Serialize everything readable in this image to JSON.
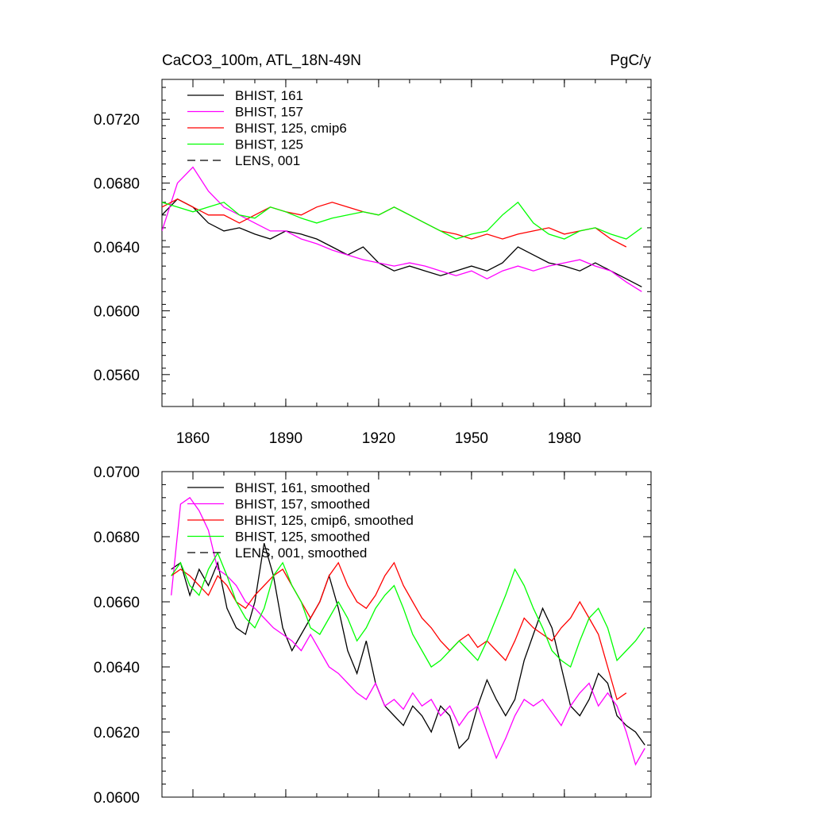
{
  "panels": [
    {
      "id": "raw",
      "title_left": "CaCO3_100m, ATL_18N-49N",
      "title_right": "PgC/y",
      "xlim": [
        1850,
        2008
      ],
      "ylim": [
        0.054,
        0.0745
      ],
      "yticks": [
        "0.0560",
        "0.0600",
        "0.0640",
        "0.0680",
        "0.0720"
      ],
      "ytick_values": [
        0.056,
        0.06,
        0.064,
        0.068,
        0.072
      ],
      "xticks": [
        "1860",
        "1890",
        "1920",
        "1950",
        "1980"
      ],
      "xtick_values": [
        1860,
        1890,
        1920,
        1950,
        1980
      ],
      "show_xtick_labels": true,
      "legend": [
        {
          "label": "BHIST, 161",
          "color": "#000000",
          "dash": false
        },
        {
          "label": "BHIST, 157",
          "color": "#ff00ff",
          "dash": false
        },
        {
          "label": "BHIST, 125, cmip6",
          "color": "#ff0000",
          "dash": false
        },
        {
          "label": "BHIST, 125",
          "color": "#00ff00",
          "dash": false
        },
        {
          "label": "LENS, 001",
          "color": "#000000",
          "dash": true
        }
      ]
    },
    {
      "id": "smoothed",
      "title_left": "",
      "title_right": "",
      "xlim": [
        1850,
        2008
      ],
      "ylim": [
        0.06,
        0.07
      ],
      "yticks": [
        "0.0600",
        "0.0620",
        "0.0640",
        "0.0660",
        "0.0680",
        "0.0700"
      ],
      "ytick_values": [
        0.06,
        0.062,
        0.064,
        0.066,
        0.068,
        0.07
      ],
      "xticks": [
        "1860",
        "1890",
        "1920",
        "1950",
        "1980"
      ],
      "xtick_values": [
        1860,
        1890,
        1920,
        1950,
        1980
      ],
      "show_xtick_labels": false,
      "legend": [
        {
          "label": "BHIST, 161, smoothed",
          "color": "#000000",
          "dash": false
        },
        {
          "label": "BHIST, 157, smoothed",
          "color": "#ff00ff",
          "dash": false
        },
        {
          "label": "BHIST, 125, cmip6, smoothed",
          "color": "#ff0000",
          "dash": false
        },
        {
          "label": "BHIST, 125, smoothed",
          "color": "#00ff00",
          "dash": false
        },
        {
          "label": "LENS, 001, smoothed",
          "color": "#000000",
          "dash": true
        }
      ]
    }
  ],
  "chart_data": [
    {
      "type": "line",
      "title": "CaCO3_100m, ATL_18N-49N",
      "units": "PgC/y",
      "xlabel": "",
      "ylabel": "",
      "xlim": [
        1850,
        2008
      ],
      "ylim": [
        0.054,
        0.0745
      ],
      "grid": false,
      "legend_position": "top-left",
      "series": [
        {
          "name": "BHIST, 161",
          "color": "#000000",
          "x": [
            1850,
            1855,
            1860,
            1865,
            1870,
            1875,
            1880,
            1885,
            1890,
            1895,
            1900,
            1905,
            1910,
            1915,
            1920,
            1925,
            1930,
            1935,
            1940,
            1945,
            1950,
            1955,
            1960,
            1965,
            1970,
            1975,
            1980,
            1985,
            1990,
            1995,
            2000,
            2005
          ],
          "y": [
            0.066,
            0.067,
            0.0665,
            0.0655,
            0.065,
            0.0652,
            0.0648,
            0.0645,
            0.065,
            0.0648,
            0.0645,
            0.064,
            0.0635,
            0.064,
            0.063,
            0.0625,
            0.0628,
            0.0625,
            0.0622,
            0.0625,
            0.0628,
            0.0625,
            0.063,
            0.064,
            0.0635,
            0.063,
            0.0628,
            0.0625,
            0.063,
            0.0625,
            0.062,
            0.0615
          ]
        },
        {
          "name": "BHIST, 157",
          "color": "#ff00ff",
          "x": [
            1850,
            1855,
            1860,
            1865,
            1870,
            1875,
            1880,
            1885,
            1890,
            1895,
            1900,
            1905,
            1910,
            1915,
            1920,
            1925,
            1930,
            1935,
            1940,
            1945,
            1950,
            1955,
            1960,
            1965,
            1970,
            1975,
            1980,
            1985,
            1990,
            1995,
            2000,
            2005
          ],
          "y": [
            0.065,
            0.068,
            0.069,
            0.0675,
            0.0665,
            0.066,
            0.0655,
            0.065,
            0.065,
            0.0645,
            0.0642,
            0.0638,
            0.0635,
            0.0632,
            0.063,
            0.0628,
            0.063,
            0.0628,
            0.0625,
            0.0622,
            0.0625,
            0.062,
            0.0625,
            0.0628,
            0.0625,
            0.0628,
            0.063,
            0.0632,
            0.0628,
            0.0625,
            0.0618,
            0.0612
          ]
        },
        {
          "name": "BHIST, 125, cmip6",
          "color": "#ff0000",
          "x": [
            1850,
            1855,
            1860,
            1865,
            1870,
            1875,
            1880,
            1885,
            1890,
            1895,
            1900,
            1905,
            1910,
            1915,
            1920,
            1925,
            1930,
            1935,
            1940,
            1945,
            1950,
            1955,
            1960,
            1965,
            1970,
            1975,
            1980,
            1985,
            1990,
            1995,
            2000
          ],
          "y": [
            0.0665,
            0.067,
            0.0665,
            0.066,
            0.066,
            0.0655,
            0.066,
            0.0665,
            0.0662,
            0.066,
            0.0665,
            0.0668,
            0.0665,
            0.0662,
            0.066,
            0.0665,
            0.066,
            0.0655,
            0.065,
            0.0648,
            0.0645,
            0.0648,
            0.0645,
            0.0648,
            0.065,
            0.0652,
            0.0648,
            0.065,
            0.0652,
            0.0645,
            0.064
          ]
        },
        {
          "name": "BHIST, 125",
          "color": "#00ff00",
          "x": [
            1850,
            1855,
            1860,
            1865,
            1870,
            1875,
            1880,
            1885,
            1890,
            1895,
            1900,
            1905,
            1910,
            1915,
            1920,
            1925,
            1930,
            1935,
            1940,
            1945,
            1950,
            1955,
            1960,
            1965,
            1970,
            1975,
            1980,
            1985,
            1990,
            1995,
            2000,
            2005
          ],
          "y": [
            0.0668,
            0.0665,
            0.0662,
            0.0665,
            0.0668,
            0.066,
            0.0658,
            0.0665,
            0.0662,
            0.0658,
            0.0655,
            0.0658,
            0.066,
            0.0662,
            0.066,
            0.0665,
            0.066,
            0.0655,
            0.065,
            0.0645,
            0.0648,
            0.065,
            0.066,
            0.0668,
            0.0655,
            0.0648,
            0.0645,
            0.065,
            0.0652,
            0.0648,
            0.0645,
            0.0652
          ]
        }
      ]
    },
    {
      "type": "line",
      "title": "",
      "xlabel": "",
      "ylabel": "",
      "xlim": [
        1850,
        2008
      ],
      "ylim": [
        0.06,
        0.07
      ],
      "grid": false,
      "legend_position": "top-left",
      "series": [
        {
          "name": "BHIST, 161, smoothed",
          "color": "#000000",
          "x": [
            1853,
            1856,
            1859,
            1862,
            1865,
            1868,
            1871,
            1874,
            1877,
            1880,
            1883,
            1886,
            1889,
            1892,
            1895,
            1898,
            1901,
            1904,
            1907,
            1910,
            1913,
            1916,
            1919,
            1922,
            1925,
            1928,
            1931,
            1934,
            1937,
            1940,
            1943,
            1946,
            1949,
            1952,
            1955,
            1958,
            1961,
            1964,
            1967,
            1970,
            1973,
            1976,
            1979,
            1982,
            1985,
            1988,
            1991,
            1994,
            1997,
            2000,
            2003,
            2006
          ],
          "y": [
            0.067,
            0.0672,
            0.0662,
            0.067,
            0.0665,
            0.0672,
            0.0658,
            0.0652,
            0.065,
            0.066,
            0.0678,
            0.0668,
            0.0652,
            0.0645,
            0.065,
            0.0655,
            0.066,
            0.0668,
            0.0658,
            0.0645,
            0.0638,
            0.0648,
            0.0635,
            0.0628,
            0.0625,
            0.0622,
            0.0628,
            0.0625,
            0.062,
            0.0628,
            0.0625,
            0.0615,
            0.0618,
            0.0628,
            0.0636,
            0.063,
            0.0625,
            0.063,
            0.0642,
            0.065,
            0.0658,
            0.0652,
            0.064,
            0.0628,
            0.0625,
            0.063,
            0.0638,
            0.0635,
            0.0625,
            0.0622,
            0.062,
            0.0616
          ]
        },
        {
          "name": "BHIST, 157, smoothed",
          "color": "#ff00ff",
          "x": [
            1853,
            1856,
            1859,
            1862,
            1865,
            1868,
            1871,
            1874,
            1877,
            1880,
            1883,
            1886,
            1889,
            1892,
            1895,
            1898,
            1901,
            1904,
            1907,
            1910,
            1913,
            1916,
            1919,
            1922,
            1925,
            1928,
            1931,
            1934,
            1937,
            1940,
            1943,
            1946,
            1949,
            1952,
            1955,
            1958,
            1961,
            1964,
            1967,
            1970,
            1973,
            1976,
            1979,
            1982,
            1985,
            1988,
            1991,
            1994,
            1997,
            2000,
            2003,
            2006
          ],
          "y": [
            0.0662,
            0.069,
            0.0692,
            0.0688,
            0.0682,
            0.067,
            0.0668,
            0.0665,
            0.066,
            0.0658,
            0.0655,
            0.0652,
            0.065,
            0.0648,
            0.0645,
            0.065,
            0.0645,
            0.064,
            0.0638,
            0.0635,
            0.0632,
            0.063,
            0.0635,
            0.0628,
            0.063,
            0.0627,
            0.0632,
            0.0628,
            0.063,
            0.0625,
            0.0628,
            0.0622,
            0.0626,
            0.0628,
            0.062,
            0.0612,
            0.0618,
            0.0625,
            0.063,
            0.0628,
            0.063,
            0.0626,
            0.0622,
            0.0628,
            0.0632,
            0.0635,
            0.0628,
            0.0632,
            0.0628,
            0.062,
            0.061,
            0.0615
          ]
        },
        {
          "name": "BHIST, 125, cmip6, smoothed",
          "color": "#ff0000",
          "x": [
            1853,
            1856,
            1859,
            1862,
            1865,
            1868,
            1871,
            1874,
            1877,
            1880,
            1883,
            1886,
            1889,
            1892,
            1895,
            1898,
            1901,
            1904,
            1907,
            1910,
            1913,
            1916,
            1919,
            1922,
            1925,
            1928,
            1931,
            1934,
            1937,
            1940,
            1943,
            1946,
            1949,
            1952,
            1955,
            1958,
            1961,
            1964,
            1967,
            1970,
            1973,
            1976,
            1979,
            1982,
            1985,
            1988,
            1991,
            1994,
            1997,
            2000
          ],
          "y": [
            0.0668,
            0.067,
            0.0668,
            0.0665,
            0.0662,
            0.0668,
            0.0665,
            0.066,
            0.0658,
            0.0662,
            0.0665,
            0.0668,
            0.067,
            0.0665,
            0.066,
            0.0655,
            0.066,
            0.0668,
            0.0672,
            0.0665,
            0.066,
            0.0658,
            0.0662,
            0.0668,
            0.0672,
            0.0665,
            0.066,
            0.0655,
            0.0652,
            0.0648,
            0.0645,
            0.0648,
            0.065,
            0.0646,
            0.0648,
            0.0645,
            0.0642,
            0.0648,
            0.0655,
            0.0652,
            0.065,
            0.0648,
            0.0652,
            0.0655,
            0.066,
            0.0655,
            0.065,
            0.064,
            0.063,
            0.0632
          ]
        },
        {
          "name": "BHIST, 125, smoothed",
          "color": "#00ff00",
          "x": [
            1853,
            1856,
            1859,
            1862,
            1865,
            1868,
            1871,
            1874,
            1877,
            1880,
            1883,
            1886,
            1889,
            1892,
            1895,
            1898,
            1901,
            1904,
            1907,
            1910,
            1913,
            1916,
            1919,
            1922,
            1925,
            1928,
            1931,
            1934,
            1937,
            1940,
            1943,
            1946,
            1949,
            1952,
            1955,
            1958,
            1961,
            1964,
            1967,
            1970,
            1973,
            1976,
            1979,
            1982,
            1985,
            1988,
            1991,
            1994,
            1997,
            2000,
            2003,
            2006
          ],
          "y": [
            0.0668,
            0.0672,
            0.0665,
            0.0662,
            0.067,
            0.0675,
            0.0668,
            0.066,
            0.0655,
            0.0652,
            0.0658,
            0.0668,
            0.0672,
            0.0665,
            0.066,
            0.0652,
            0.065,
            0.0655,
            0.066,
            0.0655,
            0.0648,
            0.0652,
            0.0658,
            0.0662,
            0.0665,
            0.0658,
            0.065,
            0.0645,
            0.064,
            0.0642,
            0.0645,
            0.0648,
            0.0645,
            0.0642,
            0.0648,
            0.0655,
            0.0662,
            0.067,
            0.0665,
            0.0658,
            0.0652,
            0.0645,
            0.0642,
            0.064,
            0.0648,
            0.0655,
            0.0658,
            0.0652,
            0.0642,
            0.0645,
            0.0648,
            0.0652
          ]
        }
      ]
    }
  ]
}
